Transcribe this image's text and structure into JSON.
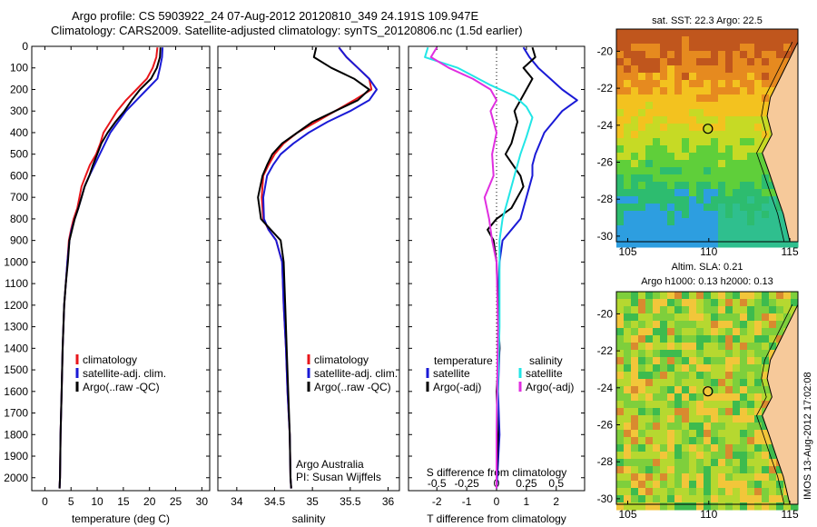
{
  "header": {
    "line1": "Argo profile: CS 5903922_24 07-Aug-2012 20120810_349 24.191S 109.947E",
    "line2": "Climatology: CARS2009. Satellite-adjusted climatology: synTS_20120806.nc (1.5d earlier)"
  },
  "colors": {
    "climatology": "#e8161b",
    "satellite": "#1a1ad6",
    "argo": "#000000",
    "sal_satellite": "#22e6e6",
    "sal_argo": "#e02ee0"
  },
  "chart_data": [
    {
      "type": "line",
      "panel": "temperature",
      "xlabel": "temperature (deg C)",
      "xticks": [
        "0",
        "5",
        "10",
        "15",
        "20",
        "25",
        "30"
      ],
      "xlim": [
        -2.5,
        31.5
      ],
      "yticks": [
        "0",
        "100",
        "200",
        "300",
        "400",
        "500",
        "600",
        "700",
        "800",
        "900",
        "1000",
        "1100",
        "1200",
        "1300",
        "1400",
        "1500",
        "1600",
        "1700",
        "1800",
        "1900",
        "2000"
      ],
      "ylim": [
        2060,
        0
      ],
      "legend": [
        "climatology",
        "satellite-adj. clim.",
        "Argo(..raw -QC)"
      ],
      "series": [
        {
          "name": "climatology",
          "x": [
            21.5,
            21.3,
            20.6,
            19.5,
            17.5,
            15.5,
            13.8,
            12.5,
            11.2,
            10.6,
            9.8,
            8.6,
            7.8,
            7.0,
            6.6,
            6.2,
            5.5,
            5.0,
            4.6,
            4.3,
            4.0,
            3.7,
            3.4,
            3.2,
            3.0,
            2.9,
            2.8
          ],
          "depth": [
            5,
            50,
            100,
            150,
            200,
            250,
            300,
            350,
            400,
            450,
            500,
            550,
            600,
            650,
            700,
            750,
            800,
            850,
            900,
            1000,
            1100,
            1200,
            1400,
            1600,
            1800,
            2000,
            2050
          ]
        },
        {
          "name": "satellite-adj. clim.",
          "x": [
            22.5,
            22.4,
            22.0,
            21.5,
            19.5,
            17.5,
            15.5,
            14.0,
            12.5,
            11.5,
            10.5,
            9.5,
            8.5,
            7.6,
            7.0,
            6.4,
            5.7,
            5.1,
            4.7,
            4.3,
            4.0,
            3.7,
            3.4,
            3.2,
            3.0,
            2.9,
            2.8
          ],
          "depth": [
            5,
            50,
            100,
            150,
            200,
            250,
            300,
            350,
            400,
            450,
            500,
            550,
            600,
            650,
            700,
            750,
            800,
            850,
            900,
            1000,
            1100,
            1200,
            1400,
            1600,
            1800,
            2000,
            2050
          ]
        },
        {
          "name": "Argo(..raw -QC)",
          "x": [
            22.1,
            22.0,
            21.4,
            20.3,
            18.2,
            16.6,
            15.2,
            13.5,
            12.0,
            10.8,
            10.0,
            9.2,
            8.5,
            7.6,
            7.0,
            6.4,
            5.7,
            5.2,
            4.7,
            4.4,
            4.0,
            3.7,
            3.4,
            3.2,
            3.0,
            2.9,
            2.8
          ],
          "depth": [
            5,
            50,
            100,
            150,
            200,
            250,
            300,
            350,
            400,
            450,
            500,
            550,
            600,
            650,
            700,
            750,
            800,
            850,
            900,
            1000,
            1100,
            1200,
            1400,
            1600,
            1800,
            2000,
            2050
          ]
        }
      ]
    },
    {
      "type": "line",
      "panel": "salinity",
      "xlabel": "salinity",
      "xticks": [
        "34",
        "34.5",
        "35",
        "35.5",
        "36"
      ],
      "xlim": [
        33.75,
        36.15
      ],
      "yticks": [],
      "ylim": [
        2060,
        0
      ],
      "legend": [
        "climatology",
        "satellite-adj. clim.",
        "Argo(..raw -QC)"
      ],
      "annotation": [
        "Argo Australia",
        "PI: Susan Wijffels"
      ],
      "series": [
        {
          "name": "climatology",
          "x": [
            35.35,
            35.45,
            35.6,
            35.75,
            35.78,
            35.55,
            35.3,
            35.05,
            34.8,
            34.62,
            34.5,
            34.42,
            34.35,
            34.33,
            34.35,
            34.42,
            34.52,
            34.6,
            34.62,
            34.65,
            34.67,
            34.7,
            34.71,
            34.72
          ],
          "depth": [
            5,
            50,
            100,
            150,
            200,
            250,
            300,
            350,
            400,
            450,
            500,
            550,
            600,
            700,
            800,
            850,
            900,
            1000,
            1200,
            1400,
            1600,
            1800,
            2000,
            2050
          ]
        },
        {
          "name": "satellite-adj. clim.",
          "x": [
            35.35,
            35.45,
            35.6,
            35.75,
            35.85,
            35.75,
            35.5,
            35.2,
            34.95,
            34.75,
            34.58,
            34.48,
            34.4,
            34.35,
            34.36,
            34.42,
            34.52,
            34.6,
            34.62,
            34.65,
            34.67,
            34.7,
            34.71,
            34.72
          ],
          "depth": [
            5,
            50,
            100,
            150,
            200,
            250,
            300,
            350,
            400,
            450,
            500,
            550,
            600,
            700,
            800,
            850,
            900,
            1000,
            1200,
            1400,
            1600,
            1800,
            2000,
            2050
          ]
        },
        {
          "name": "Argo(..raw -QC)",
          "x": [
            35.05,
            35.02,
            35.25,
            35.55,
            35.75,
            35.6,
            35.3,
            35.0,
            34.8,
            34.6,
            34.47,
            34.4,
            34.34,
            34.28,
            34.32,
            34.45,
            34.58,
            34.62,
            34.64,
            34.66,
            34.68,
            34.7,
            34.71,
            34.72
          ],
          "depth": [
            5,
            50,
            100,
            150,
            200,
            250,
            300,
            350,
            400,
            450,
            500,
            550,
            600,
            700,
            800,
            850,
            900,
            1000,
            1200,
            1400,
            1600,
            1800,
            2000,
            2050
          ]
        }
      ]
    },
    {
      "type": "line",
      "panel": "difference",
      "xlabel": "T difference from climatology",
      "xlabel_top": "S difference from climatology",
      "xticks": [
        "-2",
        "-1",
        "0",
        "1",
        "2"
      ],
      "xticks_top": [
        "-0.5",
        "-0.25",
        "0",
        "0.25",
        "0.5"
      ],
      "xlim": [
        -2.95,
        2.95
      ],
      "yticks": [],
      "ylim": [
        2060,
        0
      ],
      "legend_headers": [
        "temperature",
        "salinity"
      ],
      "legend": [
        "satellite",
        "Argo(-adj)",
        "satellite",
        "Argo(-adj)"
      ],
      "series": [
        {
          "name": "satellite",
          "x": [
            0.9,
            1.1,
            1.4,
            1.8,
            2.2,
            2.7,
            2.2,
            1.6,
            1.3,
            1.2,
            1.2,
            1.1,
            1.0,
            0.8,
            0.5,
            0.2,
            0.1,
            0.05,
            0.1,
            0.05,
            0.1,
            0.02,
            0.0
          ],
          "depth": [
            5,
            50,
            100,
            150,
            200,
            250,
            300,
            400,
            500,
            550,
            600,
            650,
            700,
            800,
            850,
            900,
            1000,
            1200,
            1400,
            1600,
            1800,
            2000,
            2050
          ]
        },
        {
          "name": "Argo(-adj)",
          "x": [
            1.2,
            1.3,
            0.9,
            1.2,
            1.0,
            0.6,
            0.7,
            0.5,
            0.3,
            0.8,
            0.9,
            0.5,
            0.0,
            -0.3,
            -0.1,
            0.0,
            0.05,
            0.1,
            0.0,
            0.05,
            0.0,
            0.0
          ],
          "depth": [
            5,
            50,
            100,
            150,
            200,
            300,
            350,
            450,
            500,
            600,
            650,
            750,
            800,
            850,
            900,
            1000,
            1200,
            1400,
            1600,
            1800,
            2000,
            2050
          ]
        },
        {
          "name": "satellite",
          "x": [
            -2.3,
            -2.4,
            -1.3,
            -0.2,
            0.6,
            1.0,
            1.2,
            1.0,
            0.8,
            0.6,
            0.4,
            0.2,
            0.1,
            0.1,
            0.1,
            0.0,
            0.0
          ],
          "depth": [
            5,
            50,
            100,
            180,
            230,
            280,
            330,
            420,
            500,
            600,
            700,
            800,
            900,
            1000,
            1300,
            1800,
            2050
          ]
        },
        {
          "name": "Argo(-adj)",
          "x": [
            -2.0,
            -2.2,
            -1.6,
            -0.8,
            -0.2,
            0.0,
            -0.2,
            0.0,
            -0.15,
            -0.1,
            -0.4,
            -0.25,
            -0.15,
            0.0,
            0.05,
            0.0,
            0.0
          ],
          "depth": [
            5,
            50,
            100,
            150,
            200,
            250,
            300,
            400,
            500,
            600,
            700,
            800,
            900,
            1000,
            1300,
            1800,
            2050
          ]
        }
      ]
    },
    {
      "type": "heatmap",
      "panel": "sst_map",
      "title": "sat. SST: 22.3 Argo: 22.5",
      "xticks": [
        "105",
        "110",
        "115"
      ],
      "xlim": [
        104.3,
        115.5
      ],
      "yticks": [
        "-20",
        "-22",
        "-24",
        "-26",
        "-28",
        "-30"
      ],
      "ylim": [
        -18.8,
        -30.3
      ],
      "marker": {
        "lon": 109.947,
        "lat": -24.191
      }
    },
    {
      "type": "heatmap",
      "panel": "sla_map",
      "title": "Altim. SLA: 0.21",
      "subtitle": "Argo h1000: 0.13 h2000: 0.13",
      "xticks": [
        "105",
        "110",
        "115"
      ],
      "xlim": [
        104.3,
        115.5
      ],
      "yticks": [
        "-20",
        "-22",
        "-24",
        "-26",
        "-28",
        "-30"
      ],
      "ylim": [
        -18.8,
        -30.3
      ],
      "marker": {
        "lon": 109.947,
        "lat": -24.191
      }
    }
  ],
  "footer": {
    "credit": "IMOS 13-Aug-2012 17:02:08"
  }
}
